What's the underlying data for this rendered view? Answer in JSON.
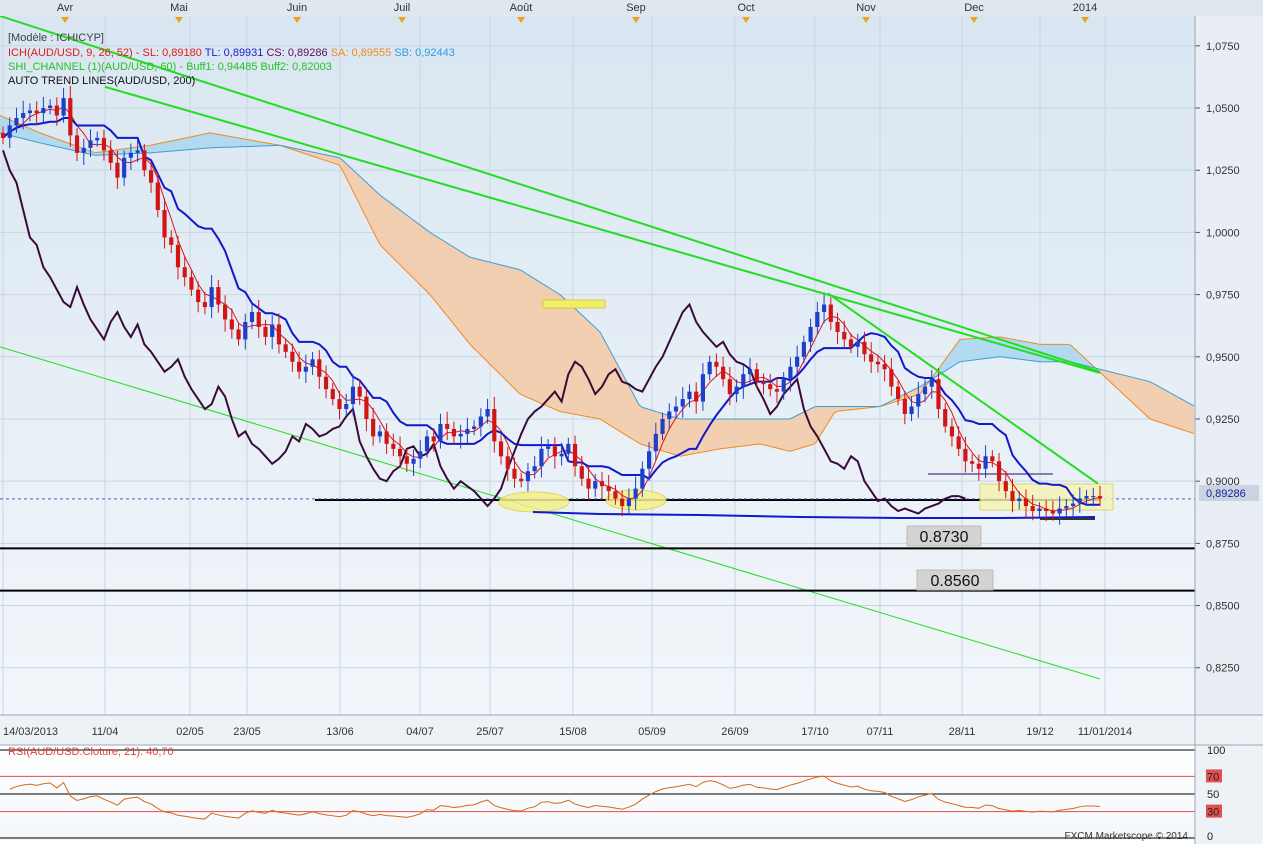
{
  "header": {
    "model_label": "[Modèle : ICHICYP]",
    "ich_prefix": "ICH(AUD/USD, 9, 26, 52)",
    "ich_sl": "SL: 0,89180",
    "ich_tl": "TL: 0,89931",
    "ich_cs": "CS: 0,89286",
    "ich_sa": "SA: 0,89555",
    "ich_sb": "SB: 0,92443",
    "shi_prefix": "SHI_CHANNEL (1)(AUD/USD, 60)",
    "shi_buff1": "Buff1: 0,94485",
    "shi_buff2": "Buff2: 0,82003",
    "atl_label": "AUTO TREND LINES(AUD/USD, 200)",
    "watermark": "FXCM Marketscope © 2014"
  },
  "colors": {
    "background": "#ffffff",
    "panel_gradient_top": "#dde8f2",
    "panel_gradient_bottom": "#f1f5f9",
    "grid": "#c9d6e2",
    "bull_candle": "#1e3fc7",
    "bear_candle": "#d11414",
    "tenkan": "#e3121b",
    "kijun": "#1119c8",
    "chikou": "#3a0b3a",
    "trend_line": "#22dd22",
    "kumo_bull": "#a9d6ee",
    "kumo_bear": "#f4c9a4",
    "kumo_edge_a": "#f08a22",
    "kumo_edge_b": "#3aa0d8",
    "rsi_line": "#d2691e",
    "rsi_level": "#e44c4c"
  },
  "months": [
    "Avr",
    "Mai",
    "Juin",
    "Juil",
    "Août",
    "Sep",
    "Oct",
    "Nov",
    "Dec",
    "2014"
  ],
  "annotations": {
    "level_1": "0.8730",
    "level_2": "0.8560"
  },
  "price_axis": {
    "labels": [
      "1,0750",
      "1,0500",
      "1,0250",
      "1,0000",
      "0,9750",
      "0,9500",
      "0,9250",
      "0,9000",
      "0,8750",
      "0,8500",
      "0,8250"
    ],
    "current_price_label": "0,89286",
    "current_price": 0.89286
  },
  "date_axis": {
    "labels": [
      "14/03/2013",
      "11/04",
      "02/05",
      "23/05",
      "13/06",
      "04/07",
      "25/07",
      "15/08",
      "05/09",
      "26/09",
      "17/10",
      "07/11",
      "28/11",
      "19/12",
      "11/01/2014"
    ]
  },
  "rsi": {
    "label": "RSI(AUD/USD.Cloture, 21): 40,70",
    "axis_labels": [
      "100",
      "70",
      "50",
      "30",
      "0"
    ]
  },
  "chart_data": {
    "type": "candlestick",
    "title": "AUD/USD",
    "ylim": [
      0.806,
      1.087
    ],
    "closes": [
      1.038,
      1.043,
      1.046,
      1.048,
      1.049,
      1.048,
      1.05,
      1.051,
      1.047,
      1.054,
      1.039,
      1.032,
      1.034,
      1.037,
      1.038,
      1.033,
      1.028,
      1.022,
      1.03,
      1.032,
      1.033,
      1.025,
      1.02,
      1.009,
      0.998,
      0.995,
      0.986,
      0.982,
      0.977,
      0.972,
      0.97,
      0.978,
      0.971,
      0.965,
      0.961,
      0.957,
      0.964,
      0.968,
      0.962,
      0.958,
      0.963,
      0.955,
      0.952,
      0.948,
      0.944,
      0.946,
      0.949,
      0.942,
      0.937,
      0.933,
      0.929,
      0.931,
      0.938,
      0.934,
      0.925,
      0.918,
      0.92,
      0.915,
      0.913,
      0.91,
      0.907,
      0.909,
      0.912,
      0.918,
      0.916,
      0.923,
      0.921,
      0.918,
      0.919,
      0.921,
      0.922,
      0.926,
      0.929,
      0.916,
      0.91,
      0.905,
      0.901,
      0.9,
      0.904,
      0.906,
      0.913,
      0.914,
      0.91,
      0.911,
      0.915,
      0.906,
      0.901,
      0.897,
      0.9,
      0.898,
      0.896,
      0.893,
      0.89,
      0.893,
      0.897,
      0.905,
      0.912,
      0.919,
      0.925,
      0.928,
      0.93,
      0.933,
      0.936,
      0.932,
      0.943,
      0.948,
      0.946,
      0.941,
      0.935,
      0.938,
      0.943,
      0.945,
      0.94,
      0.939,
      0.937,
      0.936,
      0.941,
      0.946,
      0.95,
      0.956,
      0.962,
      0.968,
      0.971,
      0.964,
      0.96,
      0.957,
      0.954,
      0.956,
      0.951,
      0.948,
      0.947,
      0.945,
      0.938,
      0.933,
      0.927,
      0.93,
      0.935,
      0.938,
      0.941,
      0.929,
      0.922,
      0.918,
      0.913,
      0.908,
      0.907,
      0.905,
      0.91,
      0.908,
      0.9,
      0.896,
      0.892,
      0.893,
      0.89,
      0.888,
      0.889,
      0.888,
      0.887,
      0.889,
      0.89,
      0.891,
      0.893,
      0.894,
      0.894,
      0.893
    ],
    "tenkan_sen_last": 0.89931,
    "kijun_sen_last": 0.8918,
    "chikou_span_last": 0.89286,
    "senkou_a_last": 0.89555,
    "senkou_b_last": 0.92443,
    "channel_upper_last": 0.94485,
    "channel_lower_last": 0.82003,
    "support_levels": [
      0.873,
      0.856
    ],
    "rsi": {
      "value": 40.7,
      "period": 21,
      "levels": [
        30,
        50,
        70
      ],
      "ylim": [
        0,
        100
      ]
    }
  }
}
